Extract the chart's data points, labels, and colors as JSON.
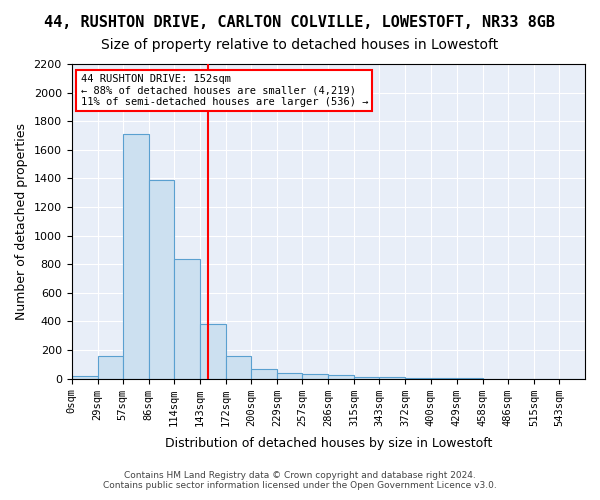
{
  "title": "44, RUSHTON DRIVE, CARLTON COLVILLE, LOWESTOFT, NR33 8GB",
  "subtitle": "Size of property relative to detached houses in Lowestoft",
  "xlabel": "Distribution of detached houses by size in Lowestoft",
  "ylabel": "Number of detached properties",
  "footer_line1": "Contains HM Land Registry data © Crown copyright and database right 2024.",
  "footer_line2": "Contains public sector information licensed under the Open Government Licence v3.0.",
  "bin_edges": [
    0,
    29,
    57,
    86,
    114,
    143,
    172,
    200,
    229,
    257,
    286,
    315,
    343,
    372,
    400,
    429,
    458,
    486,
    515,
    543,
    572
  ],
  "bar_heights": [
    20,
    155,
    1710,
    1390,
    835,
    385,
    160,
    65,
    40,
    30,
    25,
    15,
    10,
    5,
    3,
    2,
    1,
    1,
    0,
    0
  ],
  "bar_facecolor": "#cce0f0",
  "bar_edgecolor": "#5aa0d0",
  "vline_x": 152,
  "vline_color": "red",
  "annotation_title": "44 RUSHTON DRIVE: 152sqm",
  "annotation_line1": "← 88% of detached houses are smaller (4,219)",
  "annotation_line2": "11% of semi-detached houses are larger (536) →",
  "annotation_box_color": "red",
  "ylim": [
    0,
    2200
  ],
  "yticks": [
    0,
    200,
    400,
    600,
    800,
    1000,
    1200,
    1400,
    1600,
    1800,
    2000,
    2200
  ],
  "background_color": "#e8eef8",
  "title_fontsize": 11,
  "subtitle_fontsize": 10,
  "axis_label_fontsize": 9,
  "tick_fontsize": 8
}
